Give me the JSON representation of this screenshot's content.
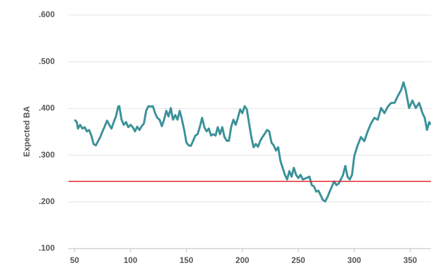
{
  "chart_data": {
    "type": "line",
    "y_label": "Expected BA",
    "color": "#3a9199",
    "x": [
      50,
      52,
      53,
      55,
      57,
      59,
      61,
      63,
      65,
      67,
      69,
      71,
      73,
      75,
      77,
      79,
      81,
      83,
      85,
      87,
      89,
      90,
      92,
      94,
      96,
      98,
      100,
      102,
      104,
      106,
      108,
      110,
      112,
      114,
      116,
      118,
      120,
      122,
      124,
      126,
      128,
      130,
      132,
      134,
      136,
      138,
      140,
      142,
      144,
      146,
      148,
      150,
      152,
      154,
      156,
      158,
      160,
      162,
      164,
      166,
      168,
      170,
      172,
      174,
      176,
      178,
      180,
      182,
      184,
      186,
      188,
      190,
      192,
      194,
      196,
      198,
      200,
      202,
      204,
      206,
      208,
      210,
      212,
      214,
      216,
      218,
      220,
      222,
      224,
      226,
      228,
      230,
      232,
      234,
      236,
      238,
      240,
      242,
      244,
      246,
      248,
      250,
      252,
      254,
      260,
      262,
      264,
      266,
      268,
      270,
      272,
      274,
      276,
      278,
      280,
      282,
      284,
      286,
      288,
      290,
      292,
      294,
      296,
      298,
      300,
      303,
      306,
      309,
      312,
      315,
      318,
      321,
      324,
      327,
      330,
      333,
      336,
      339,
      342,
      344,
      346,
      349,
      352,
      355,
      358,
      361,
      363,
      365,
      367,
      368
    ],
    "values": [
      0.376,
      0.371,
      0.357,
      0.365,
      0.357,
      0.36,
      0.351,
      0.354,
      0.342,
      0.324,
      0.321,
      0.33,
      0.339,
      0.351,
      0.362,
      0.374,
      0.365,
      0.357,
      0.371,
      0.383,
      0.404,
      0.405,
      0.376,
      0.365,
      0.371,
      0.36,
      0.365,
      0.36,
      0.351,
      0.361,
      0.354,
      0.362,
      0.368,
      0.395,
      0.405,
      0.404,
      0.405,
      0.39,
      0.38,
      0.376,
      0.362,
      0.376,
      0.395,
      0.383,
      0.401,
      0.376,
      0.386,
      0.376,
      0.395,
      0.376,
      0.354,
      0.327,
      0.321,
      0.32,
      0.331,
      0.342,
      0.345,
      0.361,
      0.38,
      0.36,
      0.351,
      0.357,
      0.342,
      0.345,
      0.342,
      0.36,
      0.345,
      0.36,
      0.339,
      0.331,
      0.331,
      0.361,
      0.376,
      0.365,
      0.38,
      0.398,
      0.39,
      0.405,
      0.398,
      0.368,
      0.339,
      0.317,
      0.324,
      0.318,
      0.331,
      0.339,
      0.346,
      0.354,
      0.351,
      0.327,
      0.321,
      0.31,
      0.317,
      0.288,
      0.273,
      0.258,
      0.248,
      0.266,
      0.254,
      0.273,
      0.258,
      0.251,
      0.258,
      0.248,
      0.254,
      0.236,
      0.233,
      0.222,
      0.224,
      0.214,
      0.204,
      0.201,
      0.21,
      0.222,
      0.233,
      0.244,
      0.236,
      0.239,
      0.248,
      0.258,
      0.277,
      0.254,
      0.248,
      0.258,
      0.298,
      0.321,
      0.339,
      0.33,
      0.351,
      0.368,
      0.38,
      0.376,
      0.401,
      0.39,
      0.404,
      0.412,
      0.412,
      0.427,
      0.44,
      0.456,
      0.439,
      0.401,
      0.417,
      0.401,
      0.412,
      0.39,
      0.38,
      0.354,
      0.371,
      0.365
    ],
    "reference_line": {
      "value": 0.244,
      "color": "#e0262b"
    },
    "xlim": [
      44.5,
      368.6
    ],
    "xticks": [
      50,
      100,
      150,
      200,
      250,
      300,
      350
    ],
    "ylim": [
      0.1,
      0.6
    ],
    "yticks": [
      {
        "value": 0.1,
        "label": ".100"
      },
      {
        "value": 0.2,
        "label": ".200"
      },
      {
        "value": 0.3,
        "label": ".300"
      },
      {
        "value": 0.4,
        "label": ".400"
      },
      {
        "value": 0.5,
        "label": ".500"
      },
      {
        "value": 0.6,
        "label": ".600"
      }
    ],
    "grid": true
  }
}
